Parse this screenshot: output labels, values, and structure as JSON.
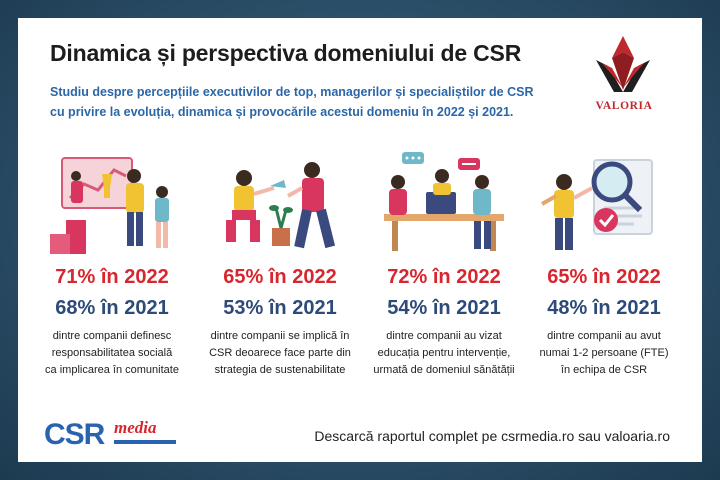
{
  "title": "Dinamica și perspectiva domeniului de CSR",
  "subtitle_line1": "Studiu despre percepțiile executivilor de top, managerilor și specialiștilor de CSR",
  "subtitle_line2": "cu privire la evoluția, dinamica și provocările acestui domeniu în 2022 și 2021.",
  "logo_text": "VALORIA",
  "colors": {
    "red": "#d7262d",
    "navy": "#2d4a78",
    "blue": "#2b67a8"
  },
  "stats": [
    {
      "y2022": "71% în 2022",
      "y2021": "68% în 2021",
      "desc": [
        "dintre companii definesc",
        "responsabilitatea socială",
        "ca implicarea în comunitate"
      ],
      "illustration": "team-trophy-chart-illustration"
    },
    {
      "y2022": "65% în 2022",
      "y2021": "53% în 2021",
      "desc": [
        "dintre companii se implică în",
        "CSR deoarece face parte din",
        "strategia de sustenabilitate"
      ],
      "illustration": "people-watering-plant-illustration"
    },
    {
      "y2022": "72% în 2022",
      "y2021": "54% în 2021",
      "desc": [
        "dintre companii au vizat",
        "educația pentru intervenție,",
        "urmată de domeniul sănătății"
      ],
      "illustration": "people-at-desk-chatting-illustration"
    },
    {
      "y2022": "65% în 2022",
      "y2021": "48% în 2021",
      "desc": [
        "dintre companii au avut",
        "numai 1-2 persoane (FTE)",
        "în echipa de CSR"
      ],
      "illustration": "magnifier-document-illustration"
    }
  ],
  "footer": {
    "brand_main": "CSR",
    "brand_sub": "media",
    "download": "Descarcă raportul complet pe csrmedia.ro sau valoaria.ro"
  }
}
